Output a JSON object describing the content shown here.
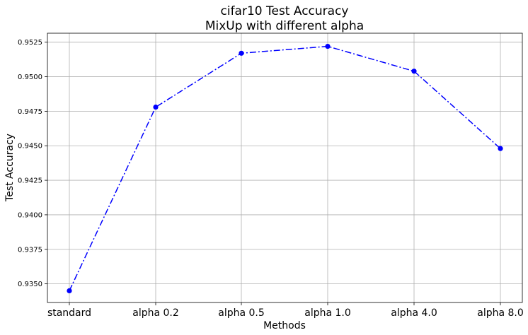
{
  "chart_data": {
    "type": "line",
    "title": [
      "cifar10 Test Accuracy",
      "MixUp with different alpha"
    ],
    "xlabel": "Methods",
    "ylabel": "Test Accuracy",
    "categories": [
      "standard",
      "alpha 0.2",
      "alpha 0.5",
      "alpha 1.0",
      "alpha 4.0",
      "alpha 8.0"
    ],
    "series": [
      {
        "values": [
          0.9345,
          0.9478,
          0.9517,
          0.9522,
          0.9504,
          0.9448
        ],
        "color": "#0000ff",
        "line_style": "dash-dot",
        "marker": "circle"
      }
    ],
    "ylim": [
      0.93365,
      0.95315
    ],
    "yticks": [
      0.935,
      0.9375,
      0.94,
      0.9425,
      0.945,
      0.9475,
      0.95,
      0.9525
    ],
    "ytick_labels": [
      "0.9350",
      "0.9375",
      "0.9400",
      "0.9425",
      "0.9450",
      "0.9475",
      "0.9500",
      "0.9525"
    ],
    "grid": true,
    "legend": null
  }
}
